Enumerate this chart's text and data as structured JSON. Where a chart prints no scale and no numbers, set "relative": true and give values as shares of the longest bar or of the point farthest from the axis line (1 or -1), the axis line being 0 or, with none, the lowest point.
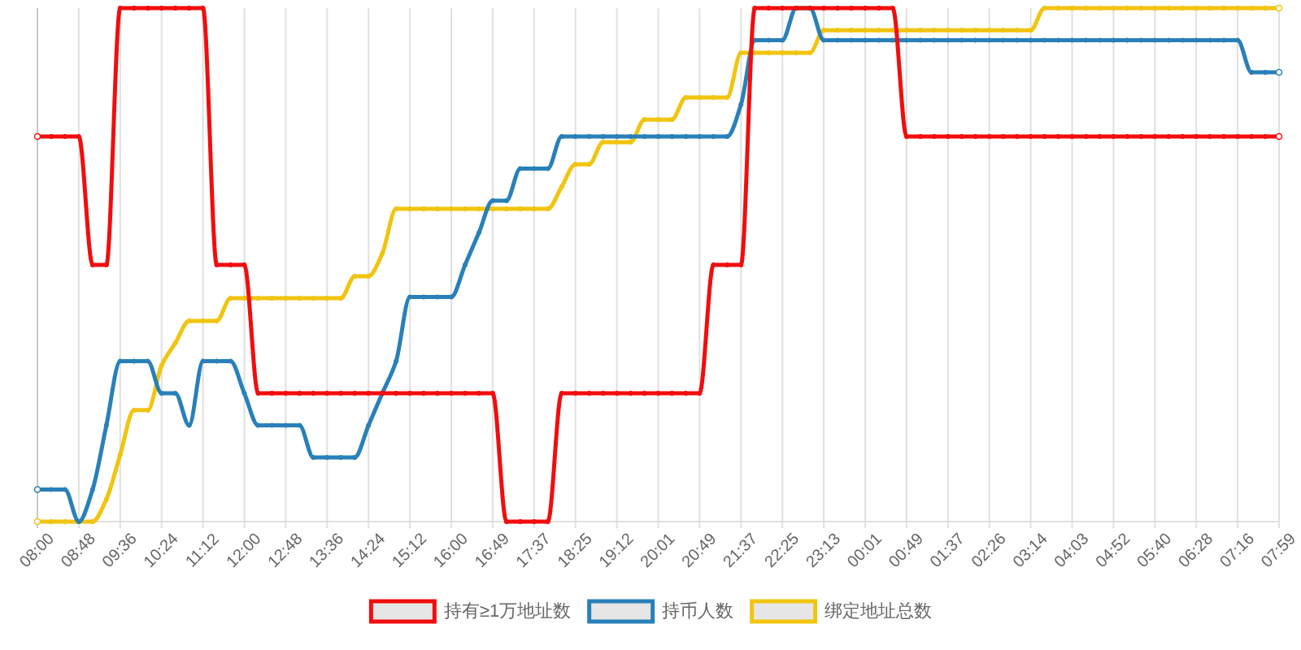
{
  "chart_data": {
    "type": "line",
    "relative": true,
    "grid": "x",
    "legend": "bottom",
    "marker": "circle",
    "categories": [
      "08:00",
      null,
      null,
      "08:48",
      null,
      null,
      "09:36",
      null,
      null,
      "10:24",
      null,
      null,
      "11:12",
      null,
      null,
      "12:00",
      null,
      null,
      "12:48",
      null,
      null,
      "13:36",
      null,
      null,
      "14:24",
      null,
      null,
      "15:12",
      null,
      null,
      "16:00",
      null,
      null,
      "16:49",
      null,
      null,
      "17:37",
      null,
      null,
      "18:25",
      null,
      null,
      "19:12",
      null,
      null,
      "20:01",
      null,
      null,
      "20:49",
      null,
      null,
      "21:37",
      null,
      null,
      "22:25",
      null,
      null,
      "23:13",
      null,
      null,
      "00:01",
      null,
      null,
      "00:49",
      null,
      null,
      "01:37",
      null,
      null,
      "02:26",
      null,
      null,
      "03:14",
      null,
      null,
      "04:03",
      null,
      null,
      "04:52",
      null,
      null,
      "05:40",
      null,
      null,
      "06:28",
      null,
      null,
      "07:16",
      null,
      null,
      "07:59"
    ],
    "series": [
      {
        "name": "持有≥1万地址数",
        "color": "#f20d0d",
        "values": [
          0.75,
          0.75,
          0.75,
          0.75,
          0.5,
          0.5,
          1,
          1,
          1,
          1,
          1,
          1,
          1,
          0.5,
          0.5,
          0.5,
          0.25,
          0.25,
          0.25,
          0.25,
          0.25,
          0.25,
          0.25,
          0.25,
          0.25,
          0.25,
          0.25,
          0.25,
          0.25,
          0.25,
          0.25,
          0.25,
          0.25,
          0.25,
          0,
          0,
          0,
          0,
          0.25,
          0.25,
          0.25,
          0.25,
          0.25,
          0.25,
          0.25,
          0.25,
          0.25,
          0.25,
          0.25,
          0.5,
          0.5,
          0.5,
          1,
          1,
          1,
          1,
          1,
          1,
          1,
          1,
          1,
          1,
          1,
          0.75,
          0.75,
          0.75,
          0.75,
          0.75,
          0.75,
          0.75,
          0.75,
          0.75,
          0.75,
          0.75,
          0.75,
          0.75,
          0.75,
          0.75,
          0.75,
          0.75,
          0.75,
          0.75,
          0.75,
          0.75,
          0.75,
          0.75,
          0.75,
          0.75,
          0.75,
          0.75,
          0.75
        ]
      },
      {
        "name": "持币人数",
        "color": "#2980b9",
        "values": [
          0.0625,
          0.0625,
          0.0625,
          0,
          0.0625,
          0.1875,
          0.3125,
          0.3125,
          0.3125,
          0.25,
          0.25,
          0.1875,
          0.3125,
          0.3125,
          0.3125,
          0.25,
          0.1875,
          0.1875,
          0.1875,
          0.1875,
          0.125,
          0.125,
          0.125,
          0.125,
          0.1875,
          0.25,
          0.3125,
          0.4375,
          0.4375,
          0.4375,
          0.4375,
          0.5,
          0.5625,
          0.625,
          0.625,
          0.6875,
          0.6875,
          0.6875,
          0.75,
          0.75,
          0.75,
          0.75,
          0.75,
          0.75,
          0.75,
          0.75,
          0.75,
          0.75,
          0.75,
          0.75,
          0.75,
          0.8125,
          0.9375,
          0.9375,
          0.9375,
          1,
          1,
          0.9375,
          0.9375,
          0.9375,
          0.9375,
          0.9375,
          0.9375,
          0.9375,
          0.9375,
          0.9375,
          0.9375,
          0.9375,
          0.9375,
          0.9375,
          0.9375,
          0.9375,
          0.9375,
          0.9375,
          0.9375,
          0.9375,
          0.9375,
          0.9375,
          0.9375,
          0.9375,
          0.9375,
          0.9375,
          0.9375,
          0.9375,
          0.9375,
          0.9375,
          0.9375,
          0.9375,
          0.875,
          0.875,
          0.875
        ]
      },
      {
        "name": "绑定地址总数",
        "color": "#f1c40f",
        "values": [
          0,
          0,
          0,
          0,
          0,
          0.0435,
          0.13,
          0.217,
          0.217,
          0.304,
          0.348,
          0.391,
          0.391,
          0.391,
          0.435,
          0.435,
          0.435,
          0.435,
          0.435,
          0.435,
          0.435,
          0.435,
          0.435,
          0.478,
          0.478,
          0.522,
          0.609,
          0.609,
          0.609,
          0.609,
          0.609,
          0.609,
          0.609,
          0.609,
          0.609,
          0.609,
          0.609,
          0.609,
          0.652,
          0.696,
          0.696,
          0.739,
          0.739,
          0.739,
          0.783,
          0.783,
          0.783,
          0.826,
          0.826,
          0.826,
          0.826,
          0.913,
          0.913,
          0.913,
          0.913,
          0.913,
          0.913,
          0.957,
          0.957,
          0.957,
          0.957,
          0.957,
          0.957,
          0.957,
          0.957,
          0.957,
          0.957,
          0.957,
          0.957,
          0.957,
          0.957,
          0.957,
          0.957,
          1,
          1,
          1,
          1,
          1,
          1,
          1,
          1,
          1,
          1,
          1,
          1,
          1,
          1,
          1,
          1,
          1,
          1
        ]
      }
    ]
  }
}
